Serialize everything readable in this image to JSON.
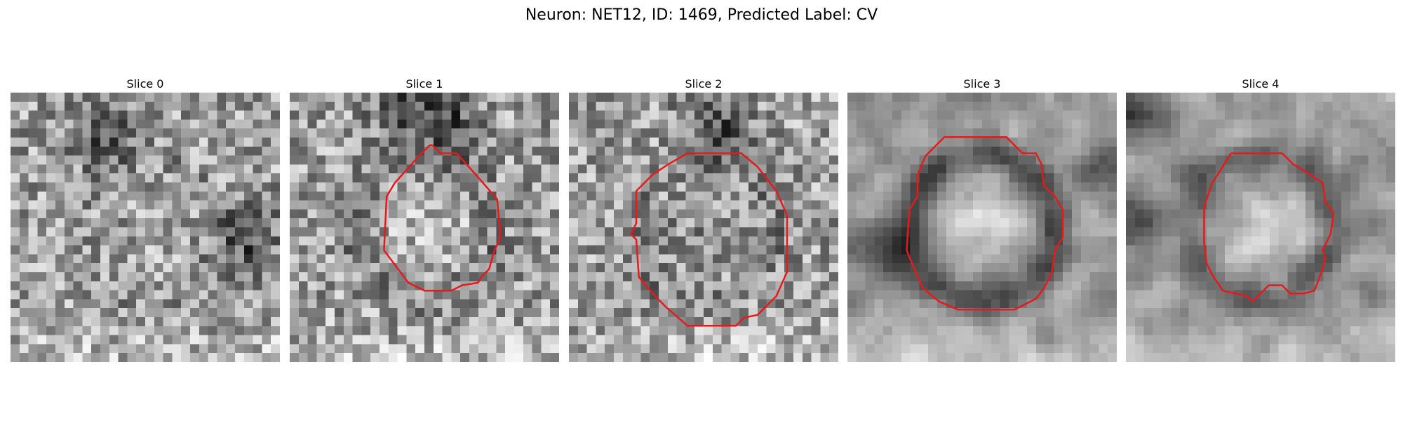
{
  "figure": {
    "title": "Neuron: NET12, ID: 1469, Predicted Label: CV"
  },
  "colors": {
    "contour": "#e41a1c",
    "background": "#ffffff"
  },
  "panels": [
    {
      "label": "Slice 0",
      "seed": 11,
      "ring": 0.05,
      "centerBright": 0.02,
      "smooth": 0,
      "darkBlobs": [
        [
          0.88,
          0.55,
          0.12
        ],
        [
          0.35,
          0.15,
          0.12
        ]
      ],
      "contour": []
    },
    {
      "label": "Slice 1",
      "seed": 23,
      "ring": 0.12,
      "centerBright": 0.1,
      "smooth": 0,
      "darkBlobs": [
        [
          0.45,
          0.05,
          0.14
        ],
        [
          0.6,
          0.12,
          0.1
        ]
      ],
      "contour": [
        [
          0.53,
          0.19
        ],
        [
          0.56,
          0.22
        ],
        [
          0.62,
          0.22
        ],
        [
          0.7,
          0.31
        ],
        [
          0.77,
          0.39
        ],
        [
          0.78,
          0.5
        ],
        [
          0.78,
          0.54
        ],
        [
          0.76,
          0.58
        ],
        [
          0.74,
          0.65
        ],
        [
          0.71,
          0.68
        ],
        [
          0.7,
          0.7
        ],
        [
          0.64,
          0.71
        ],
        [
          0.6,
          0.73
        ],
        [
          0.5,
          0.73
        ],
        [
          0.44,
          0.7
        ],
        [
          0.35,
          0.58
        ],
        [
          0.36,
          0.38
        ],
        [
          0.39,
          0.33
        ],
        [
          0.48,
          0.23
        ],
        [
          0.52,
          0.19
        ]
      ]
    },
    {
      "label": "Slice 2",
      "seed": 37,
      "ring": 0.1,
      "centerBright": -0.06,
      "smooth": 0,
      "darkBlobs": [
        [
          0.55,
          0.12,
          0.12
        ]
      ],
      "contour": [
        [
          0.44,
          0.22
        ],
        [
          0.64,
          0.22
        ],
        [
          0.7,
          0.27
        ],
        [
          0.77,
          0.36
        ],
        [
          0.81,
          0.45
        ],
        [
          0.81,
          0.66
        ],
        [
          0.77,
          0.75
        ],
        [
          0.7,
          0.82
        ],
        [
          0.65,
          0.83
        ],
        [
          0.62,
          0.86
        ],
        [
          0.44,
          0.86
        ],
        [
          0.36,
          0.79
        ],
        [
          0.32,
          0.75
        ],
        [
          0.26,
          0.68
        ],
        [
          0.25,
          0.54
        ],
        [
          0.23,
          0.52
        ],
        [
          0.25,
          0.48
        ],
        [
          0.25,
          0.36
        ],
        [
          0.31,
          0.3
        ],
        [
          0.37,
          0.26
        ]
      ]
    },
    {
      "label": "Slice 3",
      "seed": 53,
      "ring": 0.38,
      "centerBright": 0.22,
      "smooth": 1,
      "darkBlobs": [
        [
          0.12,
          0.58,
          0.12
        ],
        [
          0.95,
          0.28,
          0.1
        ]
      ],
      "contour": [
        [
          0.36,
          0.16
        ],
        [
          0.59,
          0.16
        ],
        [
          0.65,
          0.22
        ],
        [
          0.7,
          0.22
        ],
        [
          0.72,
          0.26
        ],
        [
          0.73,
          0.34
        ],
        [
          0.77,
          0.38
        ],
        [
          0.8,
          0.43
        ],
        [
          0.8,
          0.53
        ],
        [
          0.77,
          0.58
        ],
        [
          0.76,
          0.66
        ],
        [
          0.73,
          0.72
        ],
        [
          0.7,
          0.76
        ],
        [
          0.64,
          0.79
        ],
        [
          0.62,
          0.8
        ],
        [
          0.41,
          0.8
        ],
        [
          0.34,
          0.77
        ],
        [
          0.28,
          0.72
        ],
        [
          0.24,
          0.63
        ],
        [
          0.22,
          0.58
        ],
        [
          0.23,
          0.43
        ],
        [
          0.26,
          0.38
        ],
        [
          0.26,
          0.3
        ],
        [
          0.29,
          0.23
        ]
      ]
    },
    {
      "label": "Slice 4",
      "seed": 71,
      "ring": 0.32,
      "centerBright": 0.18,
      "smooth": 1,
      "darkBlobs": [
        [
          0.06,
          0.45,
          0.12
        ],
        [
          0.06,
          0.08,
          0.08
        ]
      ],
      "contour": [
        [
          0.39,
          0.22
        ],
        [
          0.58,
          0.22
        ],
        [
          0.62,
          0.26
        ],
        [
          0.67,
          0.29
        ],
        [
          0.73,
          0.33
        ],
        [
          0.74,
          0.4
        ],
        [
          0.77,
          0.44
        ],
        [
          0.76,
          0.52
        ],
        [
          0.73,
          0.58
        ],
        [
          0.74,
          0.61
        ],
        [
          0.73,
          0.65
        ],
        [
          0.7,
          0.73
        ],
        [
          0.66,
          0.74
        ],
        [
          0.61,
          0.74
        ],
        [
          0.58,
          0.71
        ],
        [
          0.53,
          0.71
        ],
        [
          0.5,
          0.74
        ],
        [
          0.47,
          0.77
        ],
        [
          0.45,
          0.75
        ],
        [
          0.36,
          0.73
        ],
        [
          0.32,
          0.67
        ],
        [
          0.3,
          0.63
        ],
        [
          0.29,
          0.55
        ],
        [
          0.29,
          0.42
        ],
        [
          0.32,
          0.33
        ],
        [
          0.34,
          0.3
        ]
      ]
    }
  ]
}
